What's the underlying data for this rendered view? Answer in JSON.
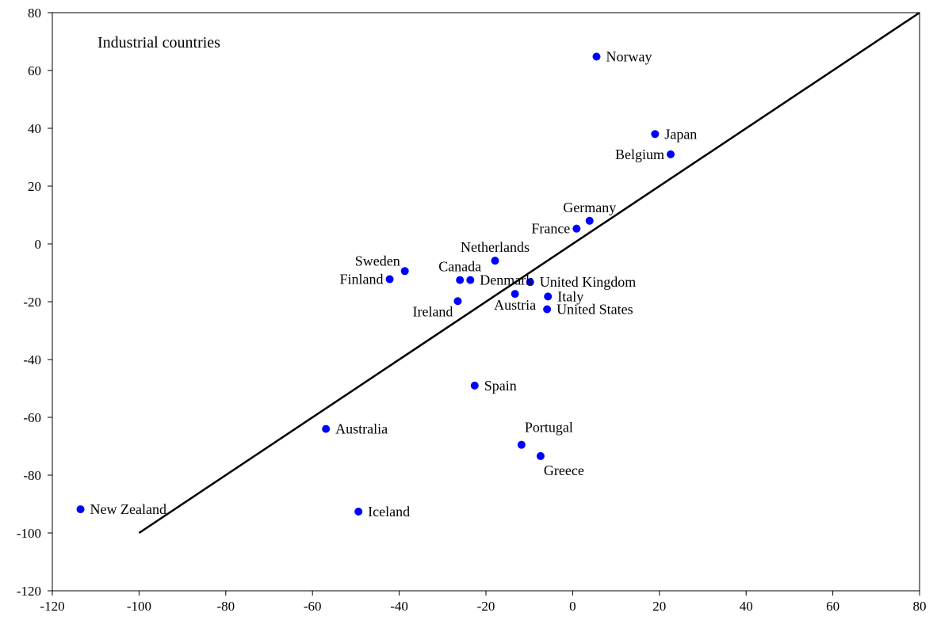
{
  "chart_data": {
    "type": "scatter",
    "annotation": "Industrial countries",
    "xlim": [
      -120,
      80
    ],
    "ylim": [
      -120,
      80
    ],
    "x_ticks": [
      "-120",
      "-100",
      "-80",
      "-60",
      "-40",
      "-20",
      "0",
      "20",
      "40",
      "60",
      "80"
    ],
    "y_ticks": [
      "80",
      "60",
      "40",
      "20",
      "0",
      "-20",
      "-40",
      "-60",
      "-80",
      "-100",
      "-120"
    ],
    "grid": false,
    "marker_color": "#0000ff",
    "line_color": "#000000",
    "reference_line": {
      "from": [
        -100,
        -100
      ],
      "to": [
        80,
        80
      ]
    },
    "points": [
      {
        "label": "Norway",
        "x": 5.5,
        "y": 64.8,
        "anchor": "right"
      },
      {
        "label": "Japan",
        "x": 19,
        "y": 38,
        "anchor": "right"
      },
      {
        "label": "Belgium",
        "x": 22.6,
        "y": 31,
        "anchor": "left"
      },
      {
        "label": "Germany",
        "x": 3.9,
        "y": 8,
        "anchor": "above"
      },
      {
        "label": "France",
        "x": 0.9,
        "y": 5.3,
        "anchor": "left"
      },
      {
        "label": "Netherlands",
        "x": -17.9,
        "y": -5.8,
        "anchor": "above"
      },
      {
        "label": "Sweden",
        "x": -38.7,
        "y": -9.4,
        "anchor": "above-left"
      },
      {
        "label": "Finland",
        "x": -42.2,
        "y": -12.2,
        "anchor": "left"
      },
      {
        "label": "Canada",
        "x": -26,
        "y": -12.5,
        "anchor": "above"
      },
      {
        "label": "Denmark",
        "x": -23.6,
        "y": -12.5,
        "anchor": "right"
      },
      {
        "label": "United Kingdom",
        "x": -9.8,
        "y": -13.2,
        "anchor": "right"
      },
      {
        "label": "Austria",
        "x": -13.3,
        "y": -17.3,
        "anchor": "below"
      },
      {
        "label": "Italy",
        "x": -5.7,
        "y": -18.2,
        "anchor": "right"
      },
      {
        "label": "Ireland",
        "x": -26.5,
        "y": -19.8,
        "anchor": "below-left"
      },
      {
        "label": "United States",
        "x": -5.9,
        "y": -22.6,
        "anchor": "right"
      },
      {
        "label": "Spain",
        "x": -22.6,
        "y": -49,
        "anchor": "right"
      },
      {
        "label": "Australia",
        "x": -56.9,
        "y": -64,
        "anchor": "right"
      },
      {
        "label": "Portugal",
        "x": -11.8,
        "y": -69.5,
        "anchor": "above-right"
      },
      {
        "label": "Greece",
        "x": -7.4,
        "y": -73.4,
        "anchor": "below-right"
      },
      {
        "label": "New Zealand",
        "x": -113.5,
        "y": -91.8,
        "anchor": "right"
      },
      {
        "label": "Iceland",
        "x": -49.4,
        "y": -92.6,
        "anchor": "right"
      }
    ]
  }
}
